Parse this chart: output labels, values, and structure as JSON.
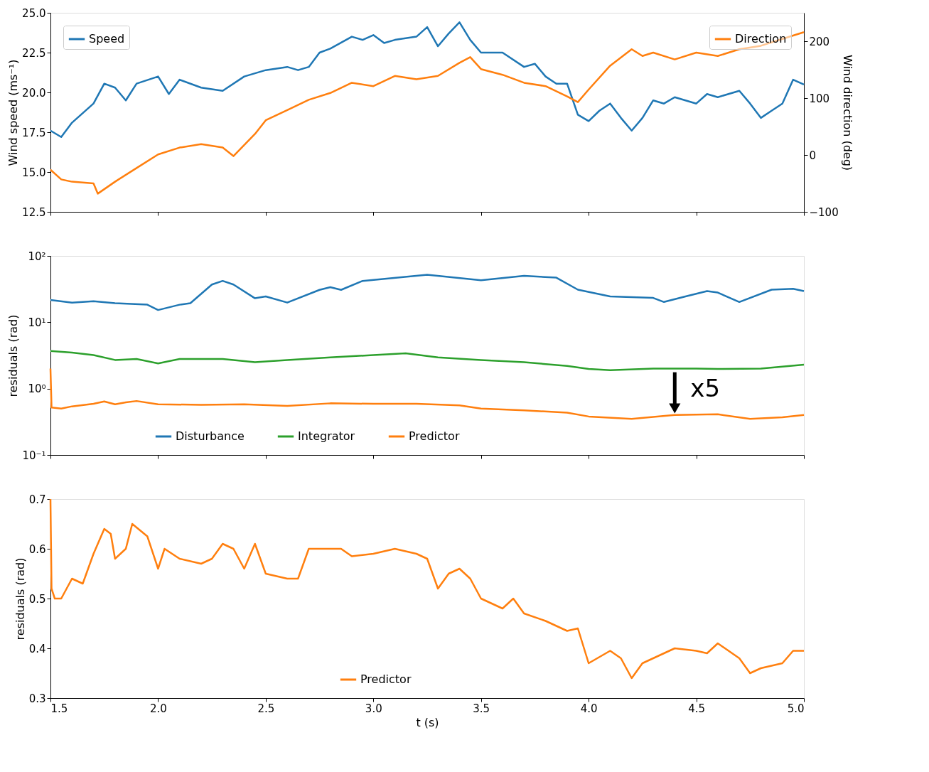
{
  "chart_data": [
    {
      "type": "line",
      "ylabel": "Wind speed (ms⁻¹)",
      "y2label": "Wind direction (deg)",
      "legend": "top left",
      "tick_labels": "y",
      "xlim": [
        1.5,
        5.0
      ],
      "xticks": [
        1.5,
        2.0,
        2.5,
        3.0,
        3.5,
        4.0,
        4.5,
        5.0
      ],
      "ylim": [
        12.5,
        25.0
      ],
      "yticks": [
        12.5,
        {
          "value": 15.0,
          "label": "15.0"
        },
        17.5,
        {
          "value": 20.0,
          "label": "20.0"
        },
        22.5,
        {
          "value": 25.0,
          "label": "25.0"
        }
      ],
      "y2lim": [
        -100,
        250
      ],
      "y2ticks": [
        -100,
        0,
        100,
        200
      ],
      "series": [
        {
          "name": "Speed",
          "color": "#1f77b4",
          "x": [
            1.5,
            1.55,
            1.6,
            1.7,
            1.75,
            1.8,
            1.85,
            1.9,
            2.0,
            2.05,
            2.1,
            2.2,
            2.3,
            2.4,
            2.5,
            2.6,
            2.65,
            2.7,
            2.75,
            2.8,
            2.9,
            2.95,
            3.0,
            3.05,
            3.1,
            3.2,
            3.25,
            3.3,
            3.35,
            3.4,
            3.45,
            3.5,
            3.6,
            3.7,
            3.75,
            3.8,
            3.85,
            3.9,
            3.95,
            4.0,
            4.05,
            4.1,
            4.15,
            4.2,
            4.25,
            4.3,
            4.35,
            4.4,
            4.5,
            4.55,
            4.6,
            4.7,
            4.75,
            4.8,
            4.85,
            4.9,
            4.95,
            5.0
          ],
          "values": [
            17.6,
            17.2,
            18.1,
            19.3,
            20.55,
            20.3,
            19.5,
            20.55,
            21.0,
            19.9,
            20.8,
            20.3,
            20.1,
            21.0,
            21.4,
            21.6,
            21.4,
            21.6,
            22.5,
            22.75,
            23.5,
            23.3,
            23.6,
            23.1,
            23.3,
            23.5,
            24.1,
            22.9,
            23.7,
            24.4,
            23.3,
            22.5,
            22.5,
            21.6,
            21.8,
            21.0,
            20.55,
            20.55,
            18.6,
            18.2,
            18.85,
            19.3,
            18.4,
            17.6,
            18.4,
            19.5,
            19.3,
            19.7,
            19.3,
            19.9,
            19.7,
            20.1,
            19.3,
            18.4,
            18.85,
            19.3,
            20.8,
            20.5
          ]
        },
        {
          "name": "Direction",
          "color": "#ff7f0e",
          "axis": "y2",
          "x": [
            1.5,
            1.55,
            1.6,
            1.7,
            1.72,
            1.8,
            1.9,
            2.0,
            2.1,
            2.2,
            2.3,
            2.35,
            2.45,
            2.5,
            2.6,
            2.7,
            2.8,
            2.9,
            3.0,
            3.1,
            3.2,
            3.3,
            3.4,
            3.45,
            3.5,
            3.6,
            3.7,
            3.8,
            3.9,
            3.95,
            4.0,
            4.1,
            4.2,
            4.25,
            4.3,
            4.4,
            4.5,
            4.6,
            4.7,
            4.8,
            4.9,
            5.0
          ],
          "values": [
            -26,
            -43,
            -47,
            -50,
            -68,
            -47,
            -23,
            1,
            13,
            19,
            13,
            -2,
            37,
            61,
            79,
            97,
            109,
            127,
            121,
            139,
            133,
            139,
            162,
            172,
            151,
            141,
            127,
            121,
            103,
            93,
            115,
            157,
            186,
            174,
            180,
            168,
            180,
            174,
            186,
            192,
            204,
            216
          ]
        }
      ]
    },
    {
      "type": "line",
      "ylabel": "residuals (rad)",
      "legend": "bottom",
      "tick_labels": "y",
      "log": "y",
      "xlim": [
        1.5,
        5.0
      ],
      "xticks": [
        1.5,
        2.0,
        2.5,
        3.0,
        3.5,
        4.0,
        4.5,
        5.0
      ],
      "ylim": [
        0.1,
        100
      ],
      "yticks": [
        {
          "value": 0.1,
          "label": "10⁻¹"
        },
        {
          "value": 1,
          "label": "10⁰"
        },
        {
          "value": 10,
          "label": "10¹"
        },
        {
          "value": 100,
          "label": "10²"
        }
      ],
      "annotations": [
        {
          "text": "x5",
          "x": 4.4,
          "y": 0.42
        }
      ],
      "series": [
        {
          "name": "Disturbance",
          "color": "#1f77b4",
          "x": [
            1.5,
            1.6,
            1.7,
            1.8,
            1.95,
            2.0,
            2.1,
            2.15,
            2.25,
            2.3,
            2.35,
            2.45,
            2.5,
            2.6,
            2.75,
            2.8,
            2.85,
            2.95,
            3.25,
            3.5,
            3.7,
            3.85,
            3.95,
            4.1,
            4.3,
            4.35,
            4.45,
            4.55,
            4.6,
            4.7,
            4.85,
            4.95,
            5.0
          ],
          "values": [
            21.7,
            19.8,
            20.7,
            19.4,
            18.4,
            15.3,
            18.4,
            19.4,
            37,
            42,
            37,
            23,
            24.5,
            19.8,
            30.8,
            33.8,
            30.8,
            42,
            52,
            43,
            50,
            47,
            31,
            24.5,
            23.3,
            20.2,
            24.5,
            29.5,
            28,
            20.2,
            31,
            32,
            29.5
          ]
        },
        {
          "name": "Integrator",
          "color": "#2ca02c",
          "x": [
            1.5,
            1.6,
            1.7,
            1.8,
            1.9,
            2.0,
            2.1,
            2.2,
            2.3,
            2.45,
            2.6,
            2.8,
            3.0,
            3.15,
            3.3,
            3.5,
            3.7,
            3.9,
            4.0,
            4.1,
            4.3,
            4.5,
            4.6,
            4.8,
            5.0
          ],
          "values": [
            3.7,
            3.5,
            3.2,
            2.7,
            2.8,
            2.4,
            2.8,
            2.8,
            2.8,
            2.5,
            2.7,
            2.95,
            3.2,
            3.4,
            2.95,
            2.7,
            2.5,
            2.2,
            1.98,
            1.9,
            2.0,
            2.0,
            1.98,
            2.0,
            2.3
          ]
        },
        {
          "name": "Predictor",
          "color": "#ff7f0e",
          "x": [
            1.5,
            1.505,
            1.55,
            1.6,
            1.7,
            1.75,
            1.8,
            1.85,
            1.9,
            2.0,
            2.2,
            2.4,
            2.6,
            2.8,
            3.0,
            3.2,
            3.4,
            3.5,
            3.7,
            3.9,
            4.0,
            4.2,
            4.4,
            4.6,
            4.75,
            4.9,
            5.0
          ],
          "values": [
            2.0,
            0.52,
            0.5,
            0.54,
            0.59,
            0.64,
            0.58,
            0.62,
            0.65,
            0.58,
            0.57,
            0.58,
            0.55,
            0.6,
            0.59,
            0.59,
            0.56,
            0.5,
            0.47,
            0.435,
            0.38,
            0.35,
            0.4,
            0.41,
            0.35,
            0.37,
            0.4
          ]
        }
      ]
    },
    {
      "type": "line",
      "ylabel": "residuals (rad)",
      "xlabel": "t (s)",
      "legend": "bottom",
      "xlim": [
        1.5,
        5.0
      ],
      "xticks": [
        1.5,
        {
          "value": 2.0,
          "label": "2.0"
        },
        2.5,
        {
          "value": 3.0,
          "label": "3.0"
        },
        3.5,
        {
          "value": 4.0,
          "label": "4.0"
        },
        4.5,
        {
          "value": 5.0,
          "label": "5.0"
        }
      ],
      "ylim": [
        0.3,
        0.7
      ],
      "yticks": [
        0.3,
        0.4,
        0.5,
        0.6,
        0.7
      ],
      "series": [
        {
          "name": "Predictor",
          "color": "#ff7f0e",
          "x": [
            1.5,
            1.505,
            1.52,
            1.55,
            1.6,
            1.65,
            1.7,
            1.75,
            1.78,
            1.8,
            1.85,
            1.88,
            1.95,
            2.0,
            2.03,
            2.1,
            2.2,
            2.25,
            2.3,
            2.35,
            2.4,
            2.45,
            2.5,
            2.6,
            2.65,
            2.7,
            2.8,
            2.85,
            2.9,
            3.0,
            3.1,
            3.2,
            3.25,
            3.3,
            3.35,
            3.4,
            3.45,
            3.5,
            3.6,
            3.65,
            3.7,
            3.8,
            3.9,
            3.95,
            4.0,
            4.1,
            4.15,
            4.2,
            4.25,
            4.3,
            4.4,
            4.5,
            4.55,
            4.6,
            4.7,
            4.75,
            4.8,
            4.9,
            4.95,
            5.0
          ],
          "values": [
            0.7,
            0.52,
            0.5,
            0.5,
            0.54,
            0.53,
            0.59,
            0.64,
            0.63,
            0.58,
            0.6,
            0.65,
            0.625,
            0.56,
            0.6,
            0.58,
            0.57,
            0.58,
            0.61,
            0.6,
            0.56,
            0.61,
            0.55,
            0.54,
            0.54,
            0.6,
            0.6,
            0.6,
            0.585,
            0.59,
            0.6,
            0.59,
            0.58,
            0.52,
            0.55,
            0.56,
            0.54,
            0.5,
            0.48,
            0.5,
            0.47,
            0.455,
            0.435,
            0.44,
            0.37,
            0.395,
            0.38,
            0.34,
            0.37,
            0.38,
            0.4,
            0.395,
            0.39,
            0.41,
            0.38,
            0.35,
            0.36,
            0.37,
            0.395,
            0.395
          ]
        }
      ]
    }
  ]
}
